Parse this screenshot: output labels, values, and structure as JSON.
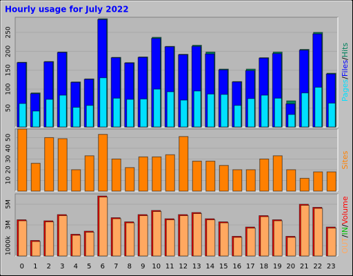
{
  "chart_data": [
    {
      "type": "bar",
      "title": "Hourly usage for July 2022",
      "categories": [
        "0",
        "1",
        "2",
        "3",
        "4",
        "5",
        "6",
        "7",
        "8",
        "9",
        "10",
        "11",
        "12",
        "13",
        "14",
        "15",
        "16",
        "17",
        "18",
        "19",
        "20",
        "21",
        "22",
        "23"
      ],
      "ylim": [
        0,
        290
      ],
      "yticks": [
        50,
        100,
        150,
        200,
        250
      ],
      "grid": true,
      "legend_separator": "/",
      "series": [
        {
          "name": "Hits",
          "color": "#00805c",
          "values": [
            171,
            90,
            173,
            198,
            119,
            127,
            286,
            184,
            170,
            185,
            237,
            213,
            192,
            216,
            198,
            153,
            120,
            153,
            183,
            198,
            69,
            205,
            250,
            142
          ]
        },
        {
          "name": "Files",
          "color": "#0000ff",
          "values": [
            170,
            88,
            172,
            197,
            118,
            126,
            284,
            183,
            169,
            184,
            234,
            212,
            191,
            213,
            193,
            151,
            119,
            149,
            182,
            194,
            61,
            203,
            246,
            140
          ]
        },
        {
          "name": "Pages",
          "color": "#00e0ff",
          "values": [
            62,
            42,
            73,
            84,
            52,
            57,
            130,
            76,
            73,
            74,
            100,
            93,
            71,
            95,
            87,
            86,
            57,
            75,
            84,
            76,
            33,
            90,
            105,
            63
          ]
        }
      ]
    },
    {
      "type": "bar",
      "ylim": [
        0,
        58
      ],
      "yticks": [
        10,
        20,
        30,
        40,
        50
      ],
      "grid": true,
      "series": [
        {
          "name": "Sites",
          "color": "#ff8000",
          "values": [
            58,
            26,
            50,
            49,
            20,
            33,
            53,
            30,
            22,
            32,
            32,
            34,
            51,
            28,
            28,
            24,
            20,
            20,
            30,
            33,
            20,
            12,
            18,
            18
          ]
        }
      ]
    },
    {
      "type": "bar",
      "ylim": [
        0,
        6
      ],
      "yticks": [
        {
          "value": 1,
          "label": "1000k"
        },
        {
          "value": 3,
          "label": "3M"
        },
        {
          "value": 5,
          "label": "5M"
        }
      ],
      "grid": true,
      "legend_separator": "/",
      "series": [
        {
          "name": "Volume",
          "color": "#ff0000",
          "values": [
            3.5,
            1.5,
            3.4,
            4.0,
            2.1,
            2.4,
            5.8,
            3.7,
            3.3,
            4.0,
            4.4,
            3.6,
            4.0,
            4.2,
            3.6,
            3.3,
            1.9,
            2.8,
            3.9,
            3.5,
            1.9,
            5.0,
            4.7,
            2.8
          ]
        },
        {
          "name": "IN",
          "color": "#00c000",
          "values": [
            null,
            null,
            null,
            null,
            null,
            null,
            null,
            null,
            null,
            null,
            null,
            null,
            null,
            null,
            null,
            null,
            null,
            null,
            null,
            null,
            null,
            null,
            null,
            null
          ]
        },
        {
          "name": "OUT",
          "color": "#ffa860",
          "values": [
            3.4,
            1.4,
            3.3,
            3.9,
            2.0,
            2.3,
            5.7,
            3.6,
            3.2,
            3.9,
            4.3,
            3.5,
            3.9,
            4.1,
            3.5,
            3.2,
            1.8,
            2.7,
            3.8,
            3.4,
            1.8,
            4.9,
            4.6,
            2.7
          ]
        }
      ]
    }
  ]
}
